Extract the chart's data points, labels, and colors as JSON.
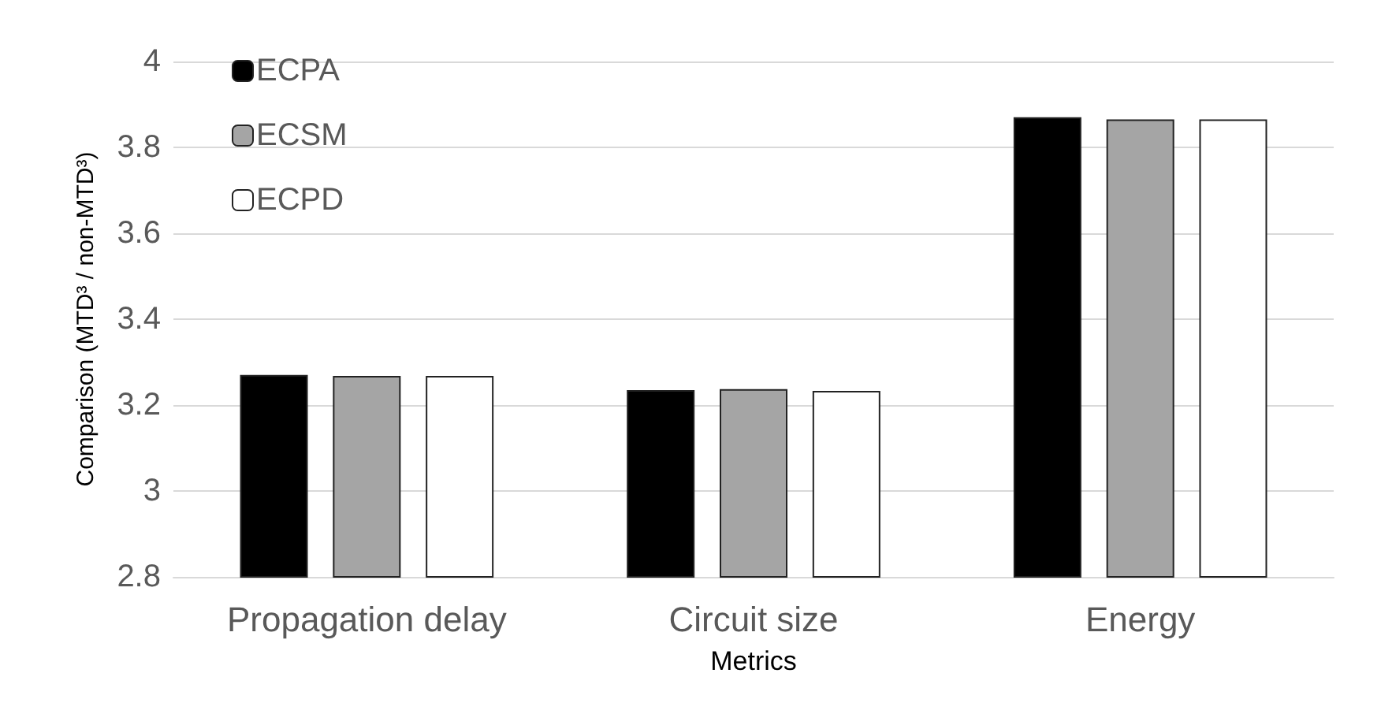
{
  "chart_data": {
    "type": "bar",
    "xlabel": "Metrics",
    "ylabel": "Comparison (MTD³ / non-MTD³)",
    "categories": [
      "Propagation delay",
      "Circuit size",
      "Energy"
    ],
    "series": [
      {
        "name": "ECPA",
        "color": "#000000",
        "values": [
          3.27,
          3.235,
          3.87
        ]
      },
      {
        "name": "ECSM",
        "color": "#a5a5a5",
        "values": [
          3.268,
          3.237,
          3.865
        ]
      },
      {
        "name": "ECPD",
        "color": "#ffffff",
        "values": [
          3.268,
          3.233,
          3.865
        ]
      }
    ],
    "ylim": [
      2.8,
      4
    ],
    "yticks": [
      2.8,
      3,
      3.2,
      3.4,
      3.6,
      3.8,
      4
    ],
    "grid": "y",
    "legend": "top left"
  }
}
